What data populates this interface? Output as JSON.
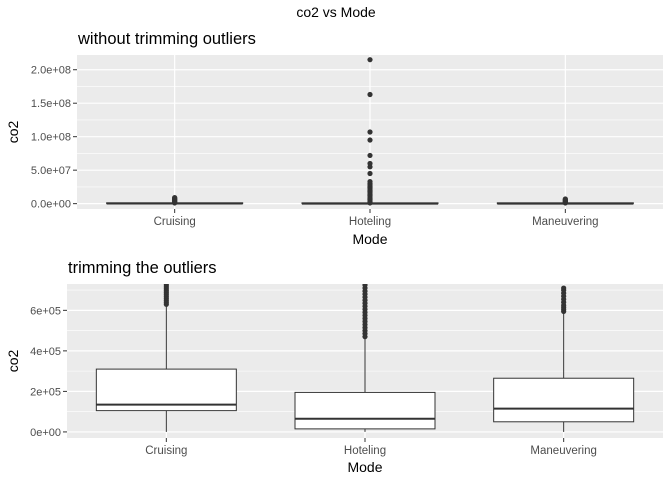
{
  "suptitle": "co2 vs Mode",
  "chart_data": [
    {
      "type": "box",
      "title": "without trimming outliers",
      "xlabel": "Mode",
      "ylabel": "co2",
      "categories": [
        "Cruising",
        "Hoteling",
        "Maneuvering"
      ],
      "ylim": [
        -8000000,
        222000000
      ],
      "yticks": [
        0,
        50000000,
        100000000,
        150000000,
        200000000
      ],
      "ytick_labels": [
        "0.0e+00",
        "5.0e+07",
        "1.0e+08",
        "1.5e+08",
        "2.0e+08"
      ],
      "boxes": [
        {
          "category": "Cruising",
          "q1": 100000,
          "median": 130000,
          "q3": 300000,
          "lower_whisker": 0,
          "upper_whisker": 700000,
          "outliers": [
            1000000,
            2000000,
            3000000,
            4000000,
            5000000,
            6000000,
            7000000,
            8000000,
            9000000
          ]
        },
        {
          "category": "Hoteling",
          "q1": 15000,
          "median": 60000,
          "q3": 190000,
          "lower_whisker": 0,
          "upper_whisker": 450000,
          "outliers": [
            1000000,
            2500000,
            4000000,
            6000000,
            8000000,
            10000000,
            12000000,
            14000000,
            16000000,
            18000000,
            20000000,
            22000000,
            24000000,
            26000000,
            28000000,
            30000000,
            33000000,
            45000000,
            55000000,
            60000000,
            72000000,
            95000000,
            107000000,
            163000000,
            215000000
          ]
        },
        {
          "category": "Maneuvering",
          "q1": 50000,
          "median": 110000,
          "q3": 260000,
          "lower_whisker": 0,
          "upper_whisker": 600000,
          "outliers": [
            1000000,
            2000000,
            3000000,
            4000000,
            5000000,
            6000000,
            7000000
          ]
        }
      ]
    },
    {
      "type": "box",
      "title": "trimming the outliers",
      "xlabel": "Mode",
      "ylabel": "co2",
      "categories": [
        "Cruising",
        "Hoteling",
        "Maneuvering"
      ],
      "ylim": [
        -30000,
        730000
      ],
      "yticks": [
        0,
        200000,
        400000,
        600000
      ],
      "ytick_labels": [
        "0e+00",
        "2e+05",
        "4e+05",
        "6e+05"
      ],
      "boxes": [
        {
          "category": "Cruising",
          "q1": 105000,
          "median": 135000,
          "q3": 310000,
          "lower_whisker": 0,
          "upper_whisker": 620000,
          "outliers": [
            630000,
            640000,
            650000,
            660000,
            670000,
            680000,
            690000,
            700000,
            710000,
            720000,
            730000
          ]
        },
        {
          "category": "Hoteling",
          "q1": 15000,
          "median": 65000,
          "q3": 195000,
          "lower_whisker": 0,
          "upper_whisker": 460000,
          "outliers": [
            470000,
            485000,
            500000,
            515000,
            530000,
            545000,
            560000,
            575000,
            590000,
            605000,
            620000,
            635000,
            650000,
            665000,
            680000,
            695000,
            710000,
            725000
          ]
        },
        {
          "category": "Maneuvering",
          "q1": 50000,
          "median": 115000,
          "q3": 265000,
          "lower_whisker": 0,
          "upper_whisker": 590000,
          "outliers": [
            595000,
            605000,
            615000,
            625000,
            640000,
            655000,
            670000,
            685000,
            700000,
            710000
          ]
        }
      ]
    }
  ]
}
